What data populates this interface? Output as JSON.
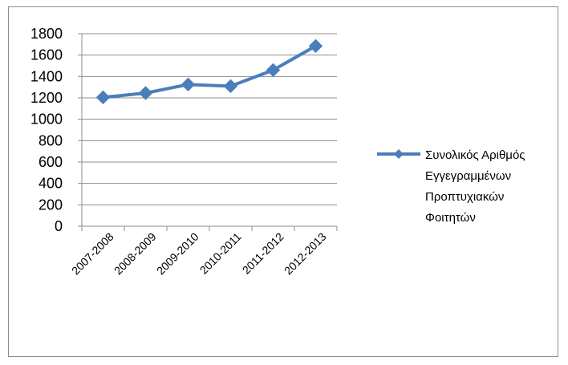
{
  "chart_data": {
    "type": "line",
    "title": "",
    "xlabel": "",
    "ylabel": "",
    "categories": [
      "2007-2008",
      "2008-2009",
      "2009-2010",
      "2010-2011",
      "2011-2012",
      "2012-2013"
    ],
    "series": [
      {
        "name": "Συνολικός Αριθμός Εγγεγραμμένων Προπτυχιακών Φοιτητών",
        "name_lines": [
          "Συνολικός Αριθμός",
          "Εγγεγραμμένων",
          "Προπτυχιακών",
          "Φοιτητών"
        ],
        "values": [
          1205,
          1245,
          1325,
          1310,
          1460,
          1685
        ],
        "color": "#4a7ebb"
      }
    ],
    "ylim": [
      0,
      1800
    ],
    "yticks": [
      0,
      200,
      400,
      600,
      800,
      1000,
      1200,
      1400,
      1600,
      1800
    ],
    "grid": true,
    "legend_position": "right"
  }
}
